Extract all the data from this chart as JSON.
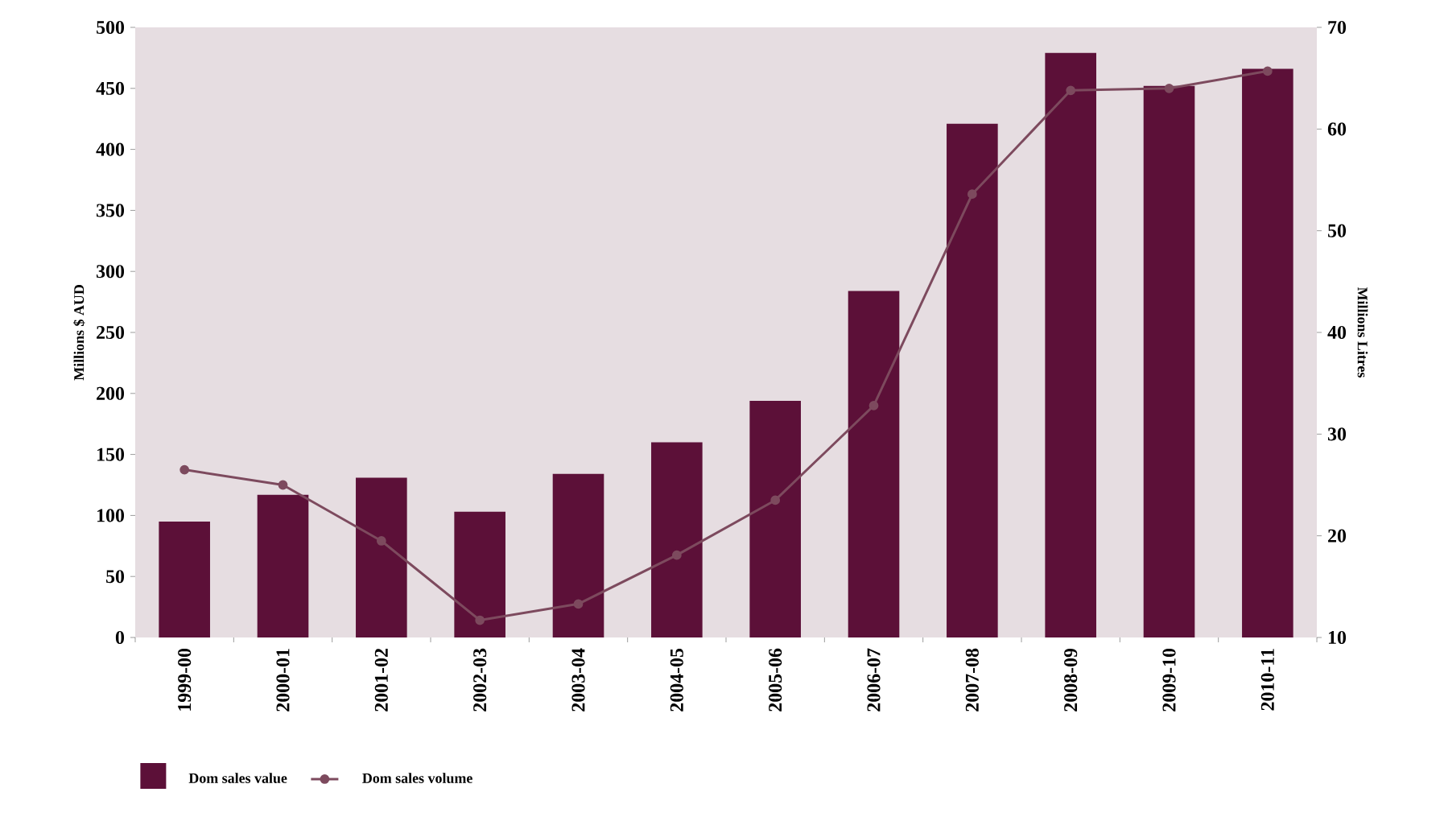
{
  "chart_data": {
    "type": "bar",
    "xlabel": null,
    "ylabel": "Millions $ AUD",
    "y2label": "Millions Litres",
    "categories": [
      "1999-00",
      "2000-01",
      "2001-02",
      "2002-03",
      "2003-04",
      "2004-05",
      "2005-06",
      "2006-07",
      "2007-08",
      "2008-09",
      "2009-10",
      "2010-11"
    ],
    "series": [
      {
        "name": "Dom sales value",
        "color": "#5c1038",
        "values": [
          95,
          117,
          131,
          103,
          134,
          160,
          194,
          284,
          421,
          479,
          452,
          466
        ]
      },
      {
        "name": "Dom sales volume",
        "type": "line",
        "axis": "y2",
        "color": "#7d4a5e",
        "marker": "circle",
        "line_style": "solid",
        "values": [
          26.5,
          25.0,
          19.5,
          11.7,
          13.3,
          18.1,
          23.5,
          32.8,
          53.6,
          63.8,
          64.0,
          65.7
        ]
      }
    ],
    "ylim": [
      0,
      500
    ],
    "yticks": [
      0,
      50,
      100,
      150,
      200,
      250,
      300,
      350,
      400,
      450,
      500
    ],
    "y2lim": [
      10,
      70
    ],
    "y2ticks": [
      10,
      20,
      30,
      40,
      50,
      60,
      70
    ],
    "grid": false,
    "legend": "bottom"
  }
}
